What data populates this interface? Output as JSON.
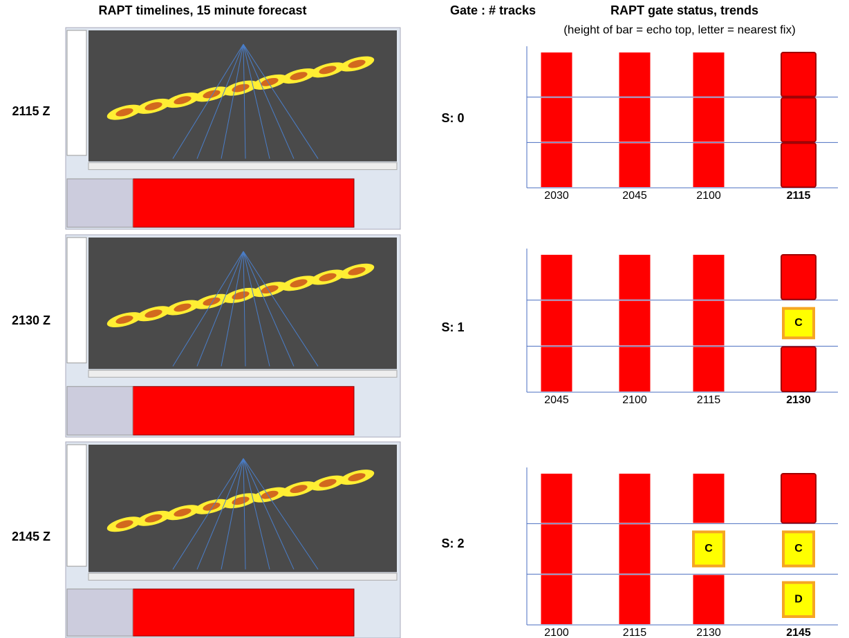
{
  "titles": {
    "left": "RAPT timelines, 15 minute forecast",
    "middle": "Gate : # tracks",
    "right": "RAPT gate status,  trends",
    "subtitle": "(height of bar = echo top, letter = nearest fix)"
  },
  "red": "#ff0000",
  "yellow": "#ffff00",
  "rows": [
    {
      "time": "2115 Z",
      "tracks": "S: 0",
      "columns": [
        {
          "time": "2030",
          "cells": [
            {
              "color": "red"
            },
            {
              "color": "red"
            },
            {
              "color": "red"
            }
          ]
        },
        {
          "time": "2045",
          "cells": [
            {
              "color": "red"
            },
            {
              "color": "red"
            },
            {
              "color": "red"
            }
          ]
        },
        {
          "time": "2100",
          "cells": [
            {
              "color": "red"
            },
            {
              "color": "red"
            },
            {
              "color": "red"
            }
          ]
        },
        {
          "time": "2115",
          "current": true,
          "cells": [
            {
              "color": "red"
            },
            {
              "color": "red"
            },
            {
              "color": "red"
            }
          ]
        }
      ]
    },
    {
      "time": "2130 Z",
      "tracks": "S: 1",
      "columns": [
        {
          "time": "2045",
          "cells": [
            {
              "color": "red"
            },
            {
              "color": "red"
            },
            {
              "color": "red"
            }
          ]
        },
        {
          "time": "2100",
          "cells": [
            {
              "color": "red"
            },
            {
              "color": "red"
            },
            {
              "color": "red"
            }
          ]
        },
        {
          "time": "2115",
          "cells": [
            {
              "color": "red"
            },
            {
              "color": "red"
            },
            {
              "color": "red"
            }
          ]
        },
        {
          "time": "2130",
          "current": true,
          "cells": [
            {
              "color": "red"
            },
            {
              "color": "yellow",
              "letter": "C"
            },
            {
              "color": "red"
            }
          ]
        }
      ]
    },
    {
      "time": "2145 Z",
      "tracks": "S: 2",
      "columns": [
        {
          "time": "2100",
          "cells": [
            {
              "color": "red"
            },
            {
              "color": "red"
            },
            {
              "color": "red"
            }
          ]
        },
        {
          "time": "2115",
          "cells": [
            {
              "color": "red"
            },
            {
              "color": "red"
            },
            {
              "color": "red"
            }
          ]
        },
        {
          "time": "2130",
          "cells": [
            {
              "color": "red"
            },
            {
              "color": "yellow",
              "letter": "C"
            },
            {
              "color": "red"
            }
          ]
        },
        {
          "time": "2145",
          "current": true,
          "cells": [
            {
              "color": "red"
            },
            {
              "color": "yellow",
              "letter": "C"
            },
            {
              "color": "yellow",
              "letter": "D"
            }
          ]
        }
      ]
    }
  ]
}
